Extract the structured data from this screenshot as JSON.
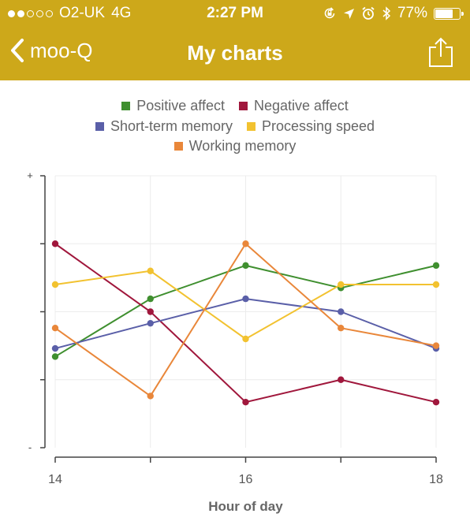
{
  "status_bar": {
    "carrier": "O2-UK",
    "network": "4G",
    "time": "2:27 PM",
    "battery": "77%",
    "battery_level": 0.77,
    "signal_dots_filled": 2,
    "signal_dots_total": 5
  },
  "nav": {
    "back_label": "moo-Q",
    "title": "My charts"
  },
  "colors": {
    "brand": "#cda81a",
    "positive_affect": "#3f8f2f",
    "negative_affect": "#a0173c",
    "short_term_memory": "#5a5fa8",
    "processing_speed": "#f2c230",
    "working_memory": "#e9873a"
  },
  "icons": {
    "back": "chevron-left-icon",
    "share": "share-icon",
    "lock_rotation": "rotation-lock-icon",
    "location": "location-arrow-icon",
    "alarm": "alarm-icon",
    "bluetooth": "bluetooth-icon",
    "battery": "battery-icon"
  },
  "chart_data": {
    "type": "line",
    "x": [
      14,
      15,
      16,
      17,
      18
    ],
    "x_tick_labels": [
      "14",
      "16",
      "18"
    ],
    "xlabel": "Hour of day",
    "ylabel": "",
    "y_top_marker": "+",
    "y_bottom_marker": "-",
    "ylim": [
      0,
      4
    ],
    "grid": true,
    "legend_position": "top",
    "series": [
      {
        "name": "Positive affect",
        "color": "#3f8f2f",
        "values": [
          1.34,
          2.19,
          2.68,
          2.35,
          2.68
        ]
      },
      {
        "name": "Negative affect",
        "color": "#a0173c",
        "values": [
          3.0,
          2.0,
          0.67,
          1.0,
          0.67
        ]
      },
      {
        "name": "Short-term memory",
        "color": "#5a5fa8",
        "values": [
          1.46,
          1.83,
          2.19,
          2.0,
          1.46
        ]
      },
      {
        "name": "Processing speed",
        "color": "#f2c230",
        "values": [
          2.4,
          2.6,
          1.6,
          2.4,
          2.4
        ]
      },
      {
        "name": "Working memory",
        "color": "#e9873a",
        "values": [
          1.76,
          0.76,
          3.0,
          1.76,
          1.5
        ]
      }
    ]
  }
}
